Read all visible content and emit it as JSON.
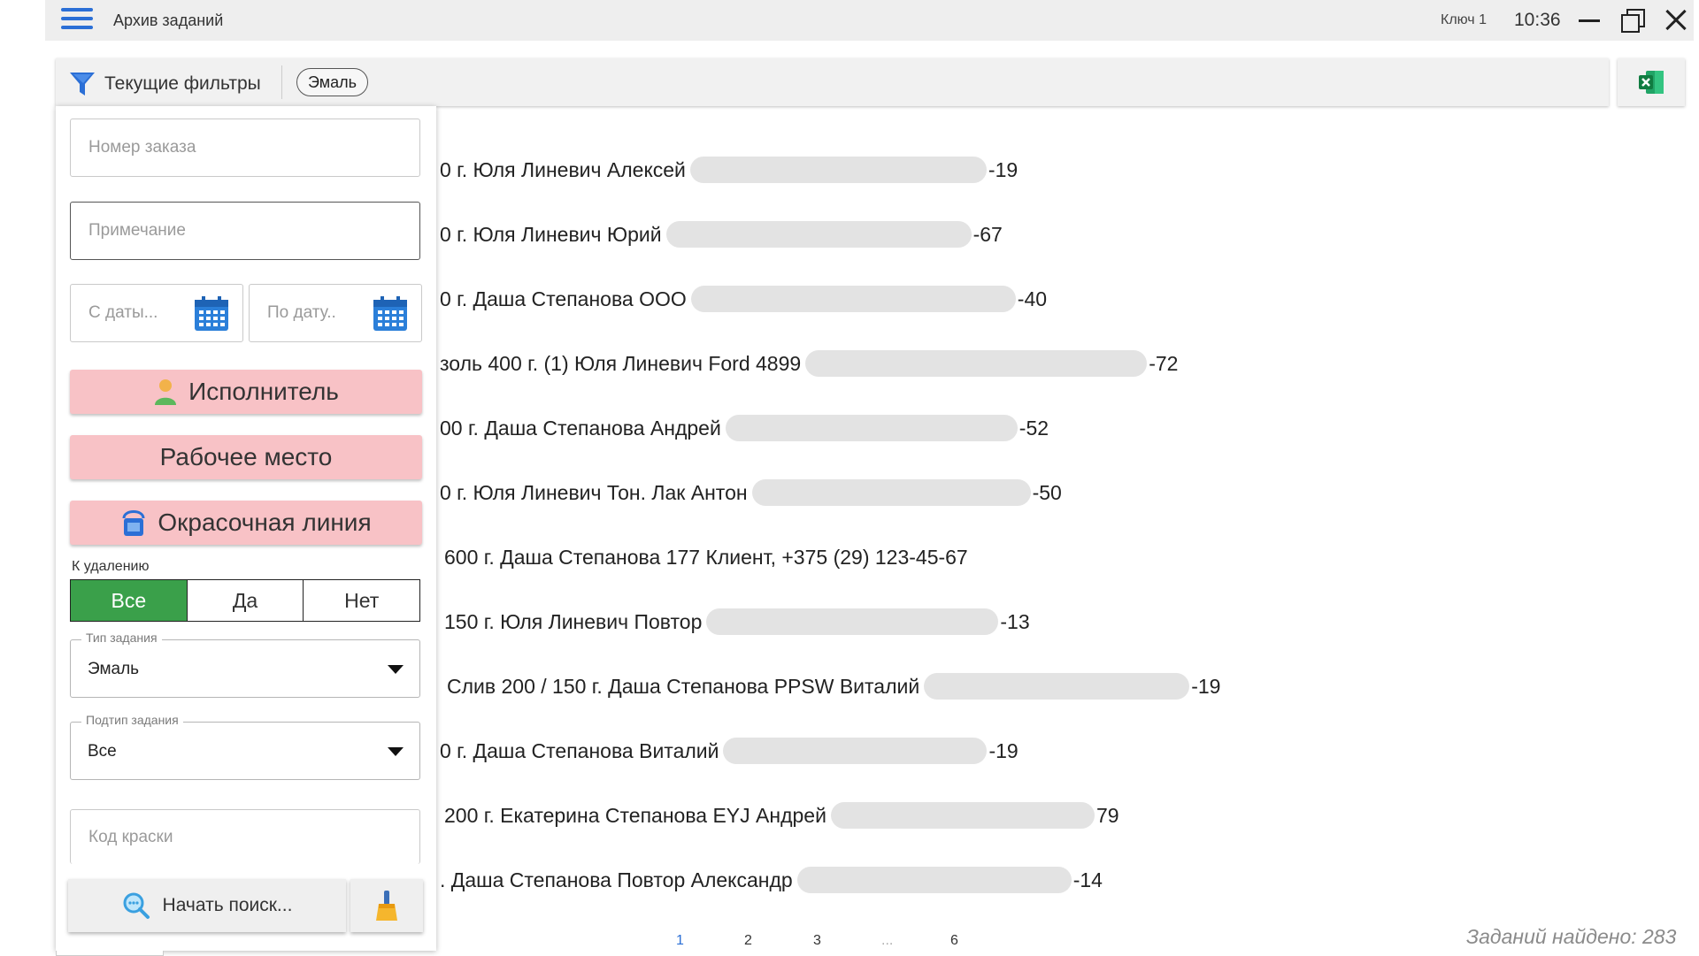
{
  "titlebar": {
    "title": "Архив заданий",
    "key_label": "Ключ 1",
    "time": "10:36",
    "menu_icon": "hamburger-menu-icon",
    "controls": [
      "minimize-icon",
      "restore-icon",
      "close-icon"
    ]
  },
  "filterbar": {
    "label": "Текущие фильтры",
    "icon": "filter-funnel-icon",
    "active_chip": "Эмаль",
    "export_icon": "excel-icon"
  },
  "panel": {
    "order_number_placeholder": "Номер заказа",
    "note_placeholder": "Примечание",
    "date_from_placeholder": "С даты...",
    "date_to_placeholder": "По дату..",
    "executor_label": "Исполнитель",
    "workplace_label": "Рабочее место",
    "paintline_label": "Окрасочная линия",
    "delete_label": "К удалению",
    "delete_options": [
      "Все",
      "Да",
      "Нет"
    ],
    "delete_selected": "Все",
    "task_type": {
      "legend": "Тип задания",
      "value": "Эмаль"
    },
    "task_subtype": {
      "legend": "Подтип задания",
      "value": "Все"
    },
    "paint_code_placeholder": "Код краски",
    "search_label": "Начать поиск...",
    "clear_icon": "broom-icon"
  },
  "results": [
    {
      "text": "0 г. Юля Линевич Алексей",
      "suffix": "-19"
    },
    {
      "text": "0 г. Юля Линевич Юрий",
      "suffix": "-67"
    },
    {
      "text": "0 г. Даша Степанова ООО",
      "suffix": "-40"
    },
    {
      "text": "золь 400 г. (1) Юля Линевич Ford 4899",
      "suffix": "-72"
    },
    {
      "text": "00 г. Даша Степанова Андрей",
      "suffix": "-52"
    },
    {
      "text": "0 г. Юля Линевич Тон. Лак Антон",
      "suffix": "-50"
    },
    {
      "text": "600 г. Даша Степанова 177 Клиент, +375 (29) 123-45-67",
      "suffix": ""
    },
    {
      "text": "150 г. Юля Линевич Повтор",
      "suffix": "-13"
    },
    {
      "text": "Слив 200 / 150 г. Даша Степанова PPSW Виталий",
      "suffix": "-19"
    },
    {
      "text": "0 г. Даша Степанова Виталий",
      "suffix": "-19"
    },
    {
      "text": "200 г. Екатерина Степанова EYJ Андрей",
      "suffix": "79"
    },
    {
      "text": ". Даша Степанова Повтор  Александр",
      "suffix": "-14"
    }
  ],
  "pagination": {
    "pages": [
      "1",
      "2",
      "3",
      "...",
      "6"
    ],
    "current": "1"
  },
  "footer": {
    "found_text": "Заданий найдено: 283"
  },
  "colors": {
    "accent_blue": "#2b6fd6",
    "pink_button": "#f8c2c6",
    "active_green": "#3aa04a",
    "titlebar_bg": "#eeeeee"
  }
}
